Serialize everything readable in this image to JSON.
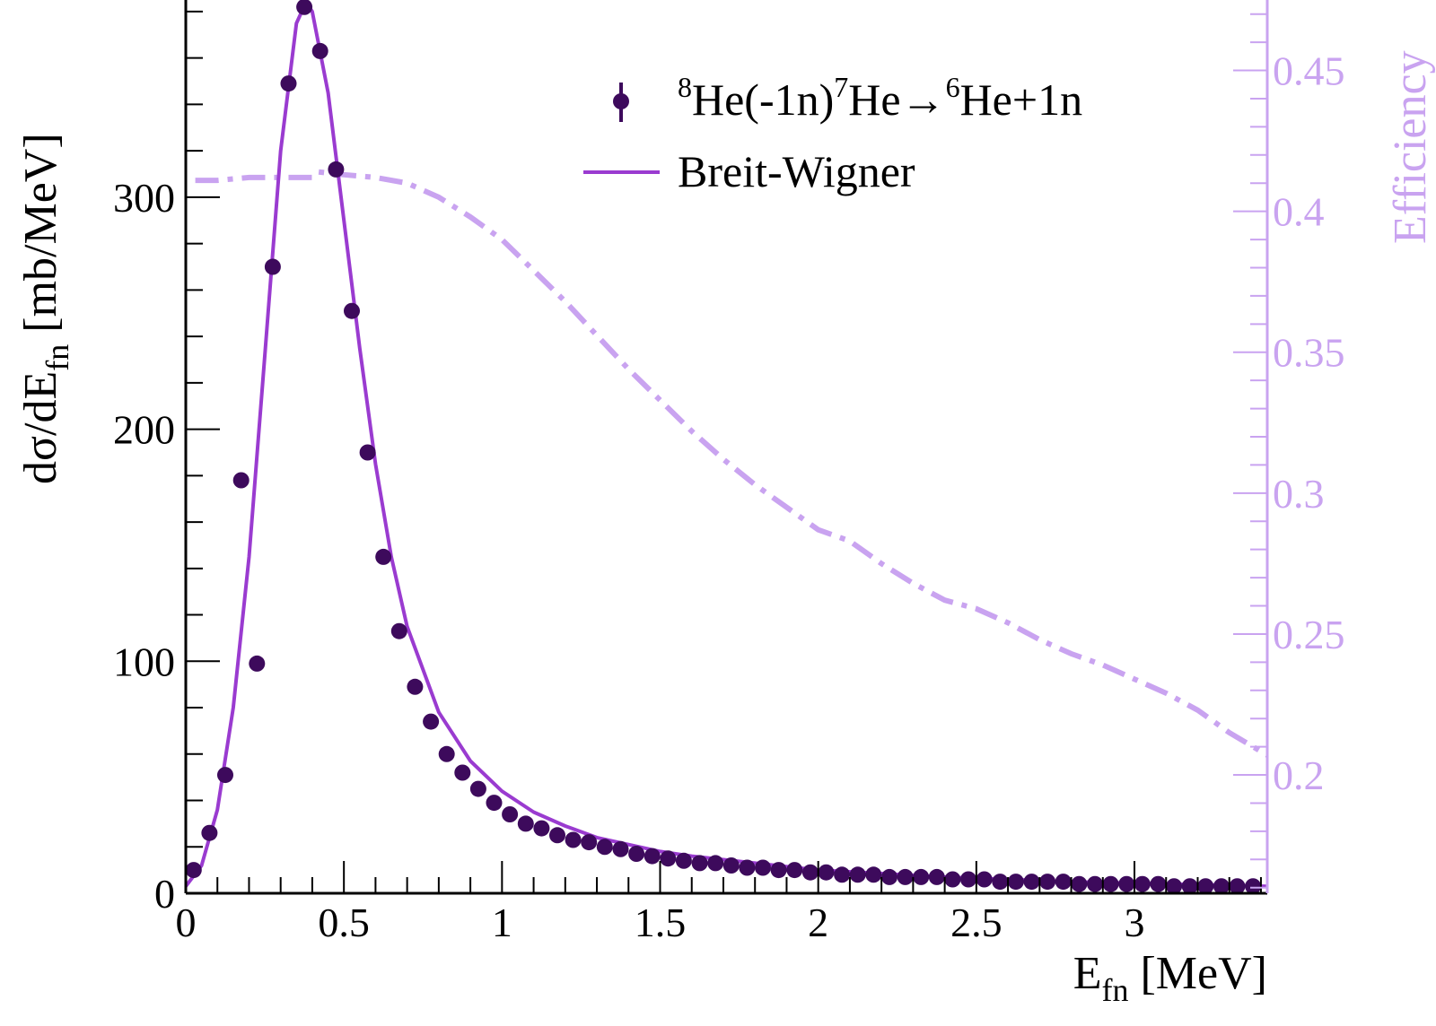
{
  "chart_data": {
    "type": "scatter",
    "xlabel": {
      "main": "E",
      "sub": "fn",
      "tail": " [MeV]"
    },
    "ylabel": {
      "main": "dσ/dE",
      "sub": "fn",
      "tail": " [mb/MeV]"
    },
    "y2label": "Efficiency",
    "xlim": [
      0,
      3.42
    ],
    "ylim": [
      0,
      385
    ],
    "y2lim": [
      0.158,
      0.475
    ],
    "x_ticks": [
      0,
      0.5,
      1,
      1.5,
      2,
      2.5,
      3
    ],
    "x_tick_labels": [
      "0",
      "0.5",
      "1",
      "1.5",
      "2",
      "2.5",
      "3"
    ],
    "y_ticks": [
      0,
      100,
      200,
      300
    ],
    "y_tick_labels": [
      "0",
      "100",
      "200",
      "300"
    ],
    "y2_ticks": [
      0.2,
      0.25,
      0.3,
      0.35,
      0.4,
      0.45
    ],
    "y2_tick_labels": [
      "0.2",
      "0.25",
      "0.3",
      "0.35",
      "0.4",
      "0.45"
    ],
    "colors": {
      "data": "#3d0a5c",
      "fit": "#9a3bd0",
      "efficiency": "#c9a3f0"
    },
    "legend": {
      "placement": "top-right",
      "data_label": {
        "p1": "8",
        "t1": "He(-1n)",
        "p2": "7",
        "t2": "He→",
        "p3": "6",
        "t3": "He+1n"
      },
      "fit_label": "Breit-Wigner"
    },
    "series": [
      {
        "name": "8He(-1n)7He→6He+1n",
        "kind": "points",
        "x": [
          0.025,
          0.075,
          0.125,
          0.175,
          0.225,
          0.275,
          0.325,
          0.375,
          0.425,
          0.475,
          0.525,
          0.575,
          0.625,
          0.675,
          0.725,
          0.775,
          0.825,
          0.875,
          0.925,
          0.975,
          1.025,
          1.075,
          1.125,
          1.175,
          1.225,
          1.275,
          1.325,
          1.375,
          1.425,
          1.475,
          1.525,
          1.575,
          1.625,
          1.675,
          1.725,
          1.775,
          1.825,
          1.875,
          1.925,
          1.975,
          2.025,
          2.075,
          2.125,
          2.175,
          2.225,
          2.275,
          2.325,
          2.375,
          2.425,
          2.475,
          2.525,
          2.575,
          2.625,
          2.675,
          2.725,
          2.775,
          2.825,
          2.875,
          2.925,
          2.975,
          3.025,
          3.075,
          3.125,
          3.175,
          3.225,
          3.275,
          3.325,
          3.375
        ],
        "values": [
          10,
          26,
          51,
          178,
          99,
          270,
          349,
          382,
          363,
          312,
          251,
          190,
          145,
          113,
          89,
          74,
          60,
          52,
          45,
          39,
          34,
          30,
          28,
          25,
          23,
          22,
          20,
          19,
          17,
          16,
          15,
          14,
          13,
          13,
          12,
          11,
          11,
          10,
          10,
          9,
          9,
          8,
          8,
          8,
          7,
          7,
          7,
          7,
          6,
          6,
          6,
          5,
          5,
          5,
          5,
          5,
          4,
          4,
          4,
          4,
          4,
          4,
          3,
          3,
          3,
          3,
          3,
          3
        ]
      },
      {
        "name": "Breit-Wigner",
        "kind": "line",
        "x": [
          0.0,
          0.05,
          0.1,
          0.15,
          0.2,
          0.25,
          0.3,
          0.35,
          0.38,
          0.4,
          0.45,
          0.5,
          0.55,
          0.6,
          0.65,
          0.7,
          0.8,
          0.9,
          1.0,
          1.1,
          1.2,
          1.3,
          1.4,
          1.5,
          1.6,
          1.8,
          2.0,
          2.2,
          2.4,
          2.6,
          2.8,
          3.0,
          3.2,
          3.42
        ],
        "values": [
          3,
          12,
          36,
          80,
          145,
          232,
          320,
          375,
          384,
          380,
          345,
          290,
          235,
          185,
          145,
          115,
          78,
          57,
          44,
          35,
          29,
          24,
          21,
          18,
          16,
          13,
          10,
          8.5,
          7,
          6,
          5,
          4.3,
          3.7,
          3
        ]
      },
      {
        "name": "Efficiency",
        "kind": "efficiency",
        "axis": "right",
        "x": [
          0.03,
          0.1,
          0.2,
          0.3,
          0.4,
          0.42,
          0.5,
          0.6,
          0.7,
          0.8,
          0.9,
          1.0,
          1.1,
          1.2,
          1.3,
          1.4,
          1.5,
          1.6,
          1.7,
          1.8,
          1.9,
          2.0,
          2.1,
          2.2,
          2.3,
          2.4,
          2.5,
          2.6,
          2.7,
          2.8,
          2.9,
          3.0,
          3.1,
          3.2,
          3.3,
          3.42
        ],
        "values": [
          0.411,
          0.411,
          0.412,
          0.412,
          0.412,
          0.414,
          0.413,
          0.412,
          0.41,
          0.405,
          0.398,
          0.39,
          0.379,
          0.368,
          0.356,
          0.344,
          0.333,
          0.322,
          0.312,
          0.303,
          0.295,
          0.287,
          0.283,
          0.275,
          0.268,
          0.262,
          0.259,
          0.254,
          0.248,
          0.243,
          0.239,
          0.234,
          0.229,
          0.223,
          0.215,
          0.207
        ]
      }
    ]
  }
}
